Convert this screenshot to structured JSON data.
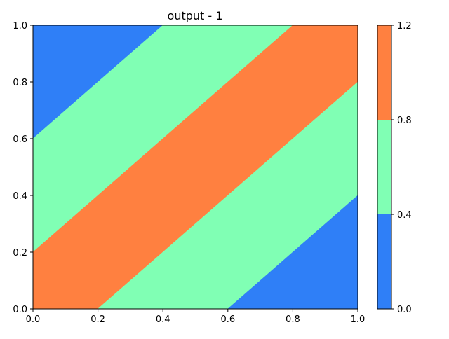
{
  "chart_data": {
    "type": "contourf",
    "title": "output - 1",
    "xlabel": "",
    "ylabel": "",
    "xlim": [
      0.0,
      1.0
    ],
    "ylim": [
      0.0,
      1.0
    ],
    "x_ticks": [
      "0.0",
      "0.2",
      "0.4",
      "0.6",
      "0.8",
      "1.0"
    ],
    "y_ticks": [
      "0.0",
      "0.2",
      "0.4",
      "0.6",
      "0.8",
      "1.0"
    ],
    "grid": false,
    "levels": [
      0.0,
      0.4,
      0.8,
      1.2
    ],
    "colorbar": {
      "ticks": [
        "0.0",
        "0.4",
        "0.8",
        "1.2"
      ],
      "colors": [
        "#2f7ff7",
        "#80ffb4",
        "#ff8040"
      ]
    },
    "regions": [
      {
        "level_range": [
          0.0,
          0.4
        ],
        "color": "#2f7ff7",
        "polygon": [
          [
            0.0,
            0.6
          ],
          [
            0.0,
            1.0
          ],
          [
            0.4,
            1.0
          ]
        ]
      },
      {
        "level_range": [
          0.4,
          0.8
        ],
        "color": "#80ffb4",
        "polygon": [
          [
            0.0,
            0.2
          ],
          [
            0.0,
            0.6
          ],
          [
            0.4,
            1.0
          ],
          [
            0.8,
            1.0
          ]
        ]
      },
      {
        "level_range": [
          0.8,
          1.2
        ],
        "color": "#ff8040",
        "polygon": [
          [
            0.0,
            0.0
          ],
          [
            0.2,
            0.0
          ],
          [
            1.0,
            0.8
          ],
          [
            1.0,
            1.0
          ],
          [
            0.8,
            1.0
          ],
          [
            0.0,
            0.2
          ]
        ]
      },
      {
        "level_range": [
          0.4,
          0.8
        ],
        "color": "#80ffb4",
        "polygon": [
          [
            0.2,
            0.0
          ],
          [
            0.6,
            0.0
          ],
          [
            1.0,
            0.4
          ],
          [
            1.0,
            0.8
          ]
        ]
      },
      {
        "level_range": [
          0.0,
          0.4
        ],
        "color": "#2f7ff7",
        "polygon": [
          [
            0.6,
            0.0
          ],
          [
            1.0,
            0.0
          ],
          [
            1.0,
            0.4
          ]
        ]
      }
    ]
  }
}
